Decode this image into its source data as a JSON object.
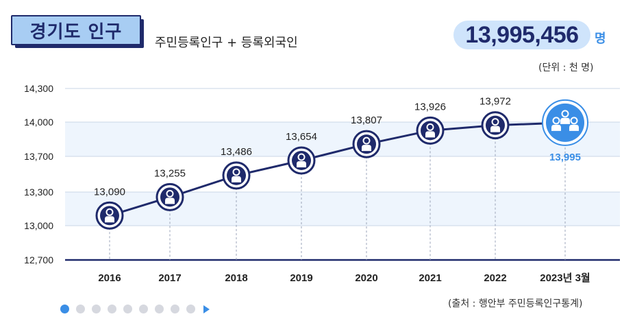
{
  "header": {
    "title": "경기도 인구",
    "subtitle": "주민등록인구 + 등록외국인",
    "total_value": "13,995,456",
    "total_unit": "명",
    "unit_note": "(단위 : 천 명)"
  },
  "footer": {
    "source": "(출처 : 행안부 주민등록인구통계)",
    "pager_count": 9,
    "pager_active": 0
  },
  "colors": {
    "navy": "#1f2a6b",
    "accent": "#3a8ee6",
    "light_blue": "#a8cdf3",
    "band": "#eef5fd"
  },
  "chart_data": {
    "type": "line",
    "categories": [
      "2016",
      "2017",
      "2018",
      "2019",
      "2020",
      "2021",
      "2022",
      "2023년 3월"
    ],
    "values": [
      13090,
      13255,
      13486,
      13654,
      13807,
      13926,
      13972,
      13995
    ],
    "value_labels": [
      "13,090",
      "13,255",
      "13,486",
      "13,654",
      "13,807",
      "13,926",
      "13,972",
      "13,995"
    ],
    "yticks": [
      12700,
      13000,
      13300,
      13700,
      14000,
      14300
    ],
    "ytick_labels": [
      "12,700",
      "13,000",
      "13,300",
      "13,700",
      "14,000",
      "14,300"
    ],
    "highlight_index": 7,
    "title": "",
    "xlabel": "",
    "ylabel": ""
  }
}
